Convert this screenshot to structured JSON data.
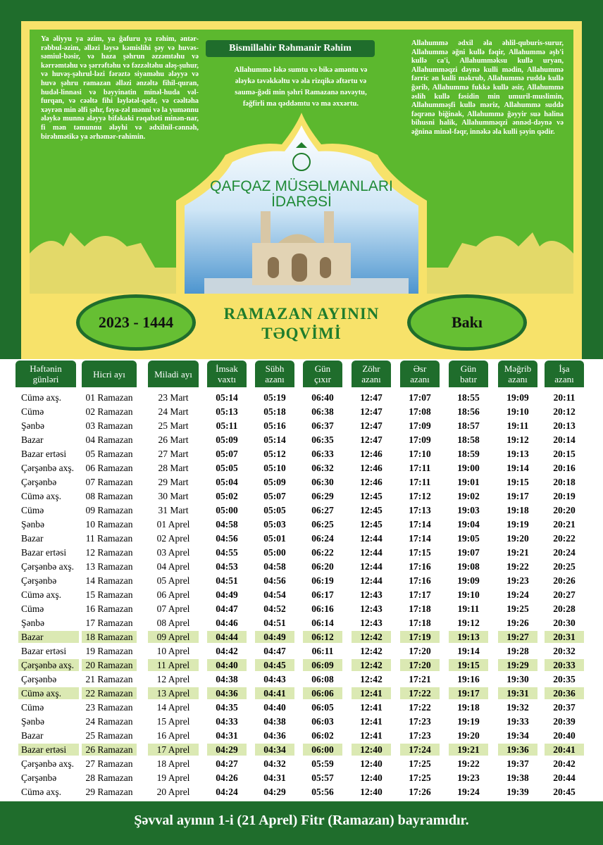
{
  "header": {
    "left_prayer": "Ya əliyyu ya əzim, ya ğafuru ya rəhim, əntər-rəbbul-əzim, əlləzi ləysə kəmislihi şəy və huvəs-səmiul-bəsir, və haza şəhrun əzzəmtəhu və kərrəmtəhu və şərrəftəhu və fəzzəltəhu aləş-şuhur, və huvəş-şəhrul-ləzi fərəztə siyaməhu ələyyə və huvə şəhru ramazan əlləzi ənzəltə fihil-quran, hudəl-linnasi və bəyyinatin minəl-huda vəl-furqan, və cəəltə fihi ləylətəl-qədr, və cəəltəha xəyrən min əlfi şəhr, fəya-zəl mənni və la yumənnu ələykə munnə ələyyə bifəkaki rəqabəti minən-nar, fi mən təmunnu ələyhi və ədxilnil-cənnəh, birəhmətikə ya ərhəmər-rahimin.",
    "bismillah": "Bismillahir Rəhmanir Rəhim",
    "center_prayer": "Allahummə ləkə sumtu və bikə aməntu və ələykə təvəkkəltu və əla rizqikə əftərtu və saumə-ğədi min şəhri Ramazanə nəvəytu, fəğfirli ma qəddəmtu və ma əxxərtu.",
    "right_prayer": "Allahummə ədxil əla əhlil-quburis-surur, Allahummə əğni kullə fəqir, Allahummə əşb'i kullə ca'i, Allahumməksu kullə uryan, Allahumməqzi dəynə kulli mədin, Allahummə fərric ən kulli məkrub, Allahummə ruddə kullə ğərib, Allahummə fukkə kullə əsir, Allahummə əslih kullə fəsidin min umuril-muslimin, Allahumməşfi kullə məriz, Allahummə suddə fəqrənə biğinak, Allahummə ğəyyir suə halina bihusni halik, Allahumməqzi ənnəd-dəynə və əğnina minəl-fəqr, innəkə əla kulli şəyin qədir.",
    "organization": "QAFQAZ MÜSƏLMANLARI İDARƏSİ",
    "year": "2023 - 1444",
    "title": "RAMAZAN AYININ TƏQVİMİ",
    "city": "Bakı"
  },
  "table": {
    "columns": [
      "Həftənin\ngünləri",
      "Hicri ayı",
      "Miladi ayı",
      "İmsak\nvaxtı",
      "Sübh\nazanı",
      "Gün\nçıxır",
      "Zöhr\nazanı",
      "Əsr\nazanı",
      "Gün\nbatır",
      "Məğrib\nazanı",
      "İşa\nazanı"
    ],
    "rows": [
      [
        "Cümə axş.",
        "01 Ramazan",
        "23 Mart",
        "05:14",
        "05:19",
        "06:40",
        "12:47",
        "17:07",
        "18:55",
        "19:09",
        "20:11"
      ],
      [
        "Cümə",
        "02 Ramazan",
        "24 Mart",
        "05:13",
        "05:18",
        "06:38",
        "12:47",
        "17:08",
        "18:56",
        "19:10",
        "20:12"
      ],
      [
        "Şənbə",
        "03 Ramazan",
        "25 Mart",
        "05:11",
        "05:16",
        "06:37",
        "12:47",
        "17:09",
        "18:57",
        "19:11",
        "20:13"
      ],
      [
        "Bazar",
        "04 Ramazan",
        "26 Mart",
        "05:09",
        "05:14",
        "06:35",
        "12:47",
        "17:09",
        "18:58",
        "19:12",
        "20:14"
      ],
      [
        "Bazar ertəsi",
        "05 Ramazan",
        "27 Mart",
        "05:07",
        "05:12",
        "06:33",
        "12:46",
        "17:10",
        "18:59",
        "19:13",
        "20:15"
      ],
      [
        "Çərşənbə axş.",
        "06 Ramazan",
        "28 Mart",
        "05:05",
        "05:10",
        "06:32",
        "12:46",
        "17:11",
        "19:00",
        "19:14",
        "20:16"
      ],
      [
        "Çərşənbə",
        "07 Ramazan",
        "29 Mart",
        "05:04",
        "05:09",
        "06:30",
        "12:46",
        "17:11",
        "19:01",
        "19:15",
        "20:18"
      ],
      [
        "Cümə axş.",
        "08 Ramazan",
        "30 Mart",
        "05:02",
        "05:07",
        "06:29",
        "12:45",
        "17:12",
        "19:02",
        "19:17",
        "20:19"
      ],
      [
        "Cümə",
        "09 Ramazan",
        "31 Mart",
        "05:00",
        "05:05",
        "06:27",
        "12:45",
        "17:13",
        "19:03",
        "19:18",
        "20:20"
      ],
      [
        "Şənbə",
        "10 Ramazan",
        "01 Aprel",
        "04:58",
        "05:03",
        "06:25",
        "12:45",
        "17:14",
        "19:04",
        "19:19",
        "20:21"
      ],
      [
        "Bazar",
        "11 Ramazan",
        "02 Aprel",
        "04:56",
        "05:01",
        "06:24",
        "12:44",
        "17:14",
        "19:05",
        "19:20",
        "20:22"
      ],
      [
        "Bazar ertəsi",
        "12 Ramazan",
        "03 Aprel",
        "04:55",
        "05:00",
        "06:22",
        "12:44",
        "17:15",
        "19:07",
        "19:21",
        "20:24"
      ],
      [
        "Çərşənbə axş.",
        "13 Ramazan",
        "04 Aprel",
        "04:53",
        "04:58",
        "06:20",
        "12:44",
        "17:16",
        "19:08",
        "19:22",
        "20:25"
      ],
      [
        "Çərşənbə",
        "14 Ramazan",
        "05 Aprel",
        "04:51",
        "04:56",
        "06:19",
        "12:44",
        "17:16",
        "19:09",
        "19:23",
        "20:26"
      ],
      [
        "Cümə axş.",
        "15 Ramazan",
        "06 Aprel",
        "04:49",
        "04:54",
        "06:17",
        "12:43",
        "17:17",
        "19:10",
        "19:24",
        "20:27"
      ],
      [
        "Cümə",
        "16 Ramazan",
        "07 Aprel",
        "04:47",
        "04:52",
        "06:16",
        "12:43",
        "17:18",
        "19:11",
        "19:25",
        "20:28"
      ],
      [
        "Şənbə",
        "17 Ramazan",
        "08 Aprel",
        "04:46",
        "04:51",
        "06:14",
        "12:43",
        "17:18",
        "19:12",
        "19:26",
        "20:30"
      ],
      [
        "Bazar",
        "18 Ramazan",
        "09 Aprel",
        "04:44",
        "04:49",
        "06:12",
        "12:42",
        "17:19",
        "19:13",
        "19:27",
        "20:31"
      ],
      [
        "Bazar ertəsi",
        "19 Ramazan",
        "10 Aprel",
        "04:42",
        "04:47",
        "06:11",
        "12:42",
        "17:20",
        "19:14",
        "19:28",
        "20:32"
      ],
      [
        "Çərşənbə axş.",
        "20 Ramazan",
        "11 Aprel",
        "04:40",
        "04:45",
        "06:09",
        "12:42",
        "17:20",
        "19:15",
        "19:29",
        "20:33"
      ],
      [
        "Çərşənbə",
        "21 Ramazan",
        "12 Aprel",
        "04:38",
        "04:43",
        "06:08",
        "12:42",
        "17:21",
        "19:16",
        "19:30",
        "20:35"
      ],
      [
        "Cümə axş.",
        "22 Ramazan",
        "13 Aprel",
        "04:36",
        "04:41",
        "06:06",
        "12:41",
        "17:22",
        "19:17",
        "19:31",
        "20:36"
      ],
      [
        "Cümə",
        "23 Ramazan",
        "14 Aprel",
        "04:35",
        "04:40",
        "06:05",
        "12:41",
        "17:22",
        "19:18",
        "19:32",
        "20:37"
      ],
      [
        "Şənbə",
        "24 Ramazan",
        "15 Aprel",
        "04:33",
        "04:38",
        "06:03",
        "12:41",
        "17:23",
        "19:19",
        "19:33",
        "20:39"
      ],
      [
        "Bazar",
        "25 Ramazan",
        "16 Aprel",
        "04:31",
        "04:36",
        "06:02",
        "12:41",
        "17:23",
        "19:20",
        "19:34",
        "20:40"
      ],
      [
        "Bazar ertəsi",
        "26 Ramazan",
        "17 Aprel",
        "04:29",
        "04:34",
        "06:00",
        "12:40",
        "17:24",
        "19:21",
        "19:36",
        "20:41"
      ],
      [
        "Çərşənbə axş.",
        "27 Ramazan",
        "18 Aprel",
        "04:27",
        "04:32",
        "05:59",
        "12:40",
        "17:25",
        "19:22",
        "19:37",
        "20:42"
      ],
      [
        "Çərşənbə",
        "28 Ramazan",
        "19 Aprel",
        "04:26",
        "04:31",
        "05:57",
        "12:40",
        "17:25",
        "19:23",
        "19:38",
        "20:44"
      ],
      [
        "Cümə axş.",
        "29 Ramazan",
        "20 Aprel",
        "04:24",
        "04:29",
        "05:56",
        "12:40",
        "17:26",
        "19:24",
        "19:39",
        "20:45"
      ]
    ]
  },
  "footer": {
    "note": "Şəvval ayının 1-i (21 Aprel) Fitr (Ramazan) bayramıdır."
  }
}
